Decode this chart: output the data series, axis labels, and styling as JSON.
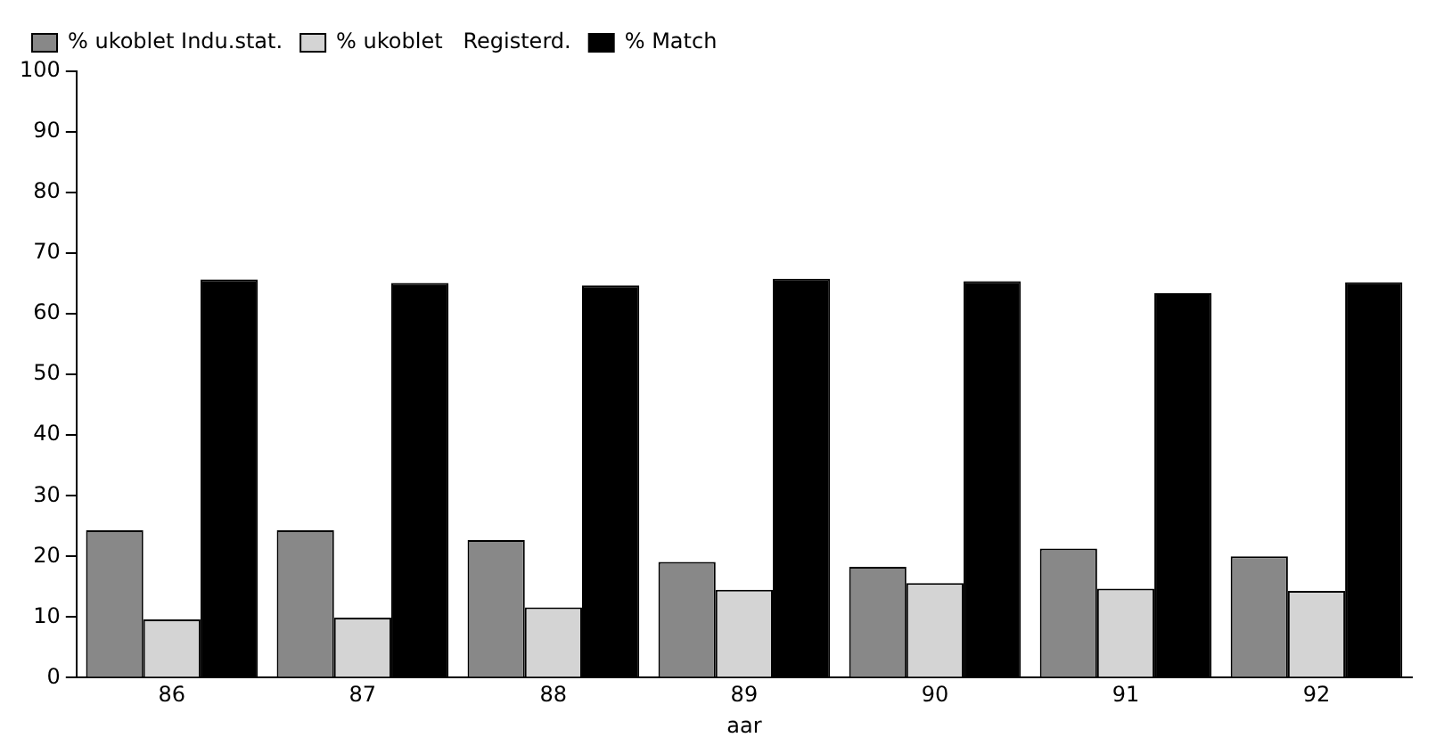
{
  "chart_data": {
    "type": "bar",
    "xlabel": "aar",
    "categories": [
      "86",
      "87",
      "88",
      "89",
      "90",
      "91",
      "92"
    ],
    "series": [
      {
        "name": "% ukoblet Indu.stat.",
        "color": "#888888",
        "values": [
          24.3,
          24.3,
          22.7,
          19.1,
          18.3,
          21.3,
          20
        ]
      },
      {
        "name": "% ukoblet   Registerd.",
        "color": "#d4d4d4",
        "values": [
          9.6,
          9.9,
          11.6,
          14.5,
          15.6,
          14.7,
          14.3
        ]
      },
      {
        "name": "% Match",
        "color": "#000000",
        "values": [
          65.7,
          65.1,
          64.7,
          65.8,
          65.4,
          63.4,
          65.2
        ]
      }
    ],
    "ylim": [
      0,
      100
    ],
    "yticks": [
      0,
      10,
      20,
      30,
      40,
      50,
      60,
      70,
      80,
      90,
      100
    ],
    "grid": false,
    "legend": "top"
  }
}
